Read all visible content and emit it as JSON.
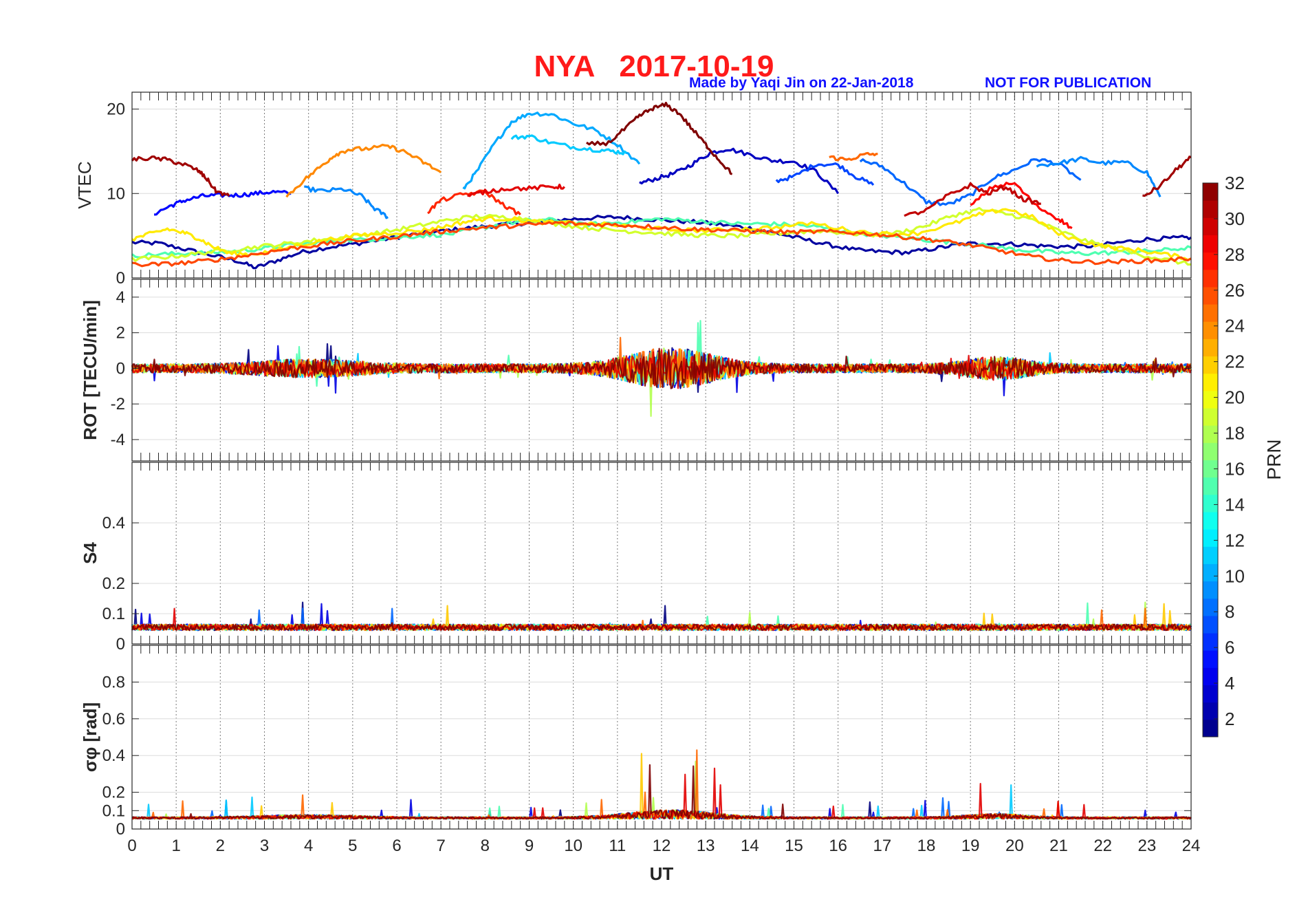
{
  "title": "NYA   2017-10-19",
  "credit": "Made by Yaqi Jin on 22-Jan-2018",
  "notice": "NOT FOR PUBLICATION",
  "chart_data": {
    "type": "line",
    "x_label": "UT",
    "x_range": [
      0,
      24
    ],
    "x_ticks": [
      "0",
      "1",
      "2",
      "3",
      "4",
      "5",
      "6",
      "7",
      "8",
      "9",
      "10",
      "11",
      "12",
      "13",
      "14",
      "15",
      "16",
      "17",
      "18",
      "19",
      "20",
      "21",
      "22",
      "23",
      "24"
    ],
    "colorbar": {
      "label": "PRN",
      "range": [
        1,
        32
      ],
      "ticks": [
        "2",
        "4",
        "6",
        "8",
        "10",
        "12",
        "14",
        "16",
        "18",
        "20",
        "22",
        "24",
        "26",
        "28",
        "30",
        "32"
      ],
      "colormap": "jet"
    },
    "panels": [
      {
        "name": "vtec",
        "ylabel": "VTEC",
        "ylim": [
          0,
          22
        ],
        "yticks": [
          "0",
          "10",
          "20"
        ],
        "ytick_values": [
          0,
          10,
          20
        ],
        "series": [
          {
            "prn": 31,
            "x": [
              0,
              0.4,
              0.8,
              1.2,
              1.5,
              1.7,
              1.9,
              2.2
            ],
            "y": [
              14,
              14.2,
              14,
              13.4,
              12.7,
              11.7,
              10.3,
              9.7
            ]
          },
          {
            "prn": 24,
            "x": [
              3.5,
              3.9,
              4.3,
              4.6,
              4.9,
              5.3,
              5.8,
              6.2,
              6.6,
              7.0
            ],
            "y": [
              9.6,
              11.6,
              13.3,
              14.6,
              15.2,
              15.3,
              15.6,
              14.9,
              13.7,
              12.5
            ]
          },
          {
            "prn": 9,
            "x": [
              3.9,
              4.3,
              4.8,
              5.2,
              5.5,
              5.8
            ],
            "y": [
              10.6,
              10.3,
              10.5,
              9.7,
              8.2,
              7.2
            ]
          },
          {
            "prn": 5,
            "x": [
              0.5,
              0.9,
              1.2,
              1.6,
              2,
              2.4,
              2.8,
              3.2,
              3.6
            ],
            "y": [
              7.6,
              8.6,
              9.2,
              9.7,
              9.8,
              9.8,
              10,
              10.2,
              10
            ]
          },
          {
            "prn": 10,
            "x": [
              7.5,
              7.8,
              8.2,
              8.6,
              9,
              9.5,
              10,
              10.5,
              11,
              11.5
            ],
            "y": [
              10.5,
              12.5,
              15.8,
              18.5,
              19.5,
              19.4,
              18.3,
              17.5,
              15.8,
              13.5
            ]
          },
          {
            "prn": 11,
            "x": [
              8.6,
              9,
              9.5,
              10,
              10.5,
              10.9,
              11.2
            ],
            "y": [
              16.6,
              16.8,
              16,
              15.5,
              15.2,
              15,
              14.8
            ]
          },
          {
            "prn": 32,
            "x": [
              10.3,
              10.8,
              11.2,
              11.5,
              11.8,
              12.1,
              12.4,
              12.7,
              13,
              13.3,
              13.6
            ],
            "y": [
              15.8,
              16,
              17.8,
              19.2,
              20.1,
              20.5,
              19.5,
              17.6,
              15.8,
              14,
              12.3
            ]
          },
          {
            "prn": 3,
            "x": [
              11.5,
              11.9,
              12.3,
              12.7,
              13.1,
              13.5,
              14,
              14.5,
              15,
              15.5,
              16
            ],
            "y": [
              11.2,
              11.8,
              12.4,
              13.5,
              14.8,
              15.3,
              14.6,
              13.9,
              13.8,
              12.6,
              10
            ]
          },
          {
            "prn": 7,
            "x": [
              14.6,
              15,
              15.5,
              16,
              16.4,
              16.8
            ],
            "y": [
              11.5,
              12,
              13.5,
              13.4,
              12,
              11
            ]
          },
          {
            "prn": 25,
            "x": [
              15.8,
              16.2,
              16.6,
              16.9
            ],
            "y": [
              14.3,
              14,
              14.6,
              14.7
            ]
          },
          {
            "prn": 8,
            "x": [
              16.5,
              17,
              17.5,
              18,
              18.5,
              19,
              19.5,
              20,
              20.5,
              21,
              21.5
            ],
            "y": [
              14,
              13.2,
              11.2,
              9,
              8.7,
              9.8,
              11.8,
              12.8,
              14.1,
              13.5,
              11.6
            ]
          },
          {
            "prn": 9,
            "x": [
              20.5,
              21,
              21.5,
              22,
              22.5,
              23,
              23.3
            ],
            "y": [
              13.3,
              13.6,
              14.1,
              13.6,
              13.7,
              12.5,
              9.6
            ]
          },
          {
            "prn": 31,
            "x": [
              22.9,
              23.3,
              23.7,
              24
            ],
            "y": [
              9.6,
              10.9,
              13,
              14.3
            ]
          },
          {
            "prn": 27,
            "x": [
              6.7,
              7.0,
              7.5,
              8,
              8.4,
              8.8
            ],
            "y": [
              7.8,
              9.2,
              9.9,
              10.2,
              8.7,
              7.5
            ]
          },
          {
            "prn": 29,
            "x": [
              7.6,
              8,
              8.5,
              9,
              9.5,
              9.8
            ],
            "y": [
              9.7,
              10.2,
              10.6,
              10.6,
              10.8,
              10.8
            ]
          },
          {
            "prn": 30,
            "x": [
              17.5,
              18,
              18.5,
              19,
              19.4,
              19.8,
              20.2,
              20.6
            ],
            "y": [
              7.3,
              8,
              9.8,
              11,
              10,
              10.8,
              9.3,
              8.8
            ]
          },
          {
            "prn": 28,
            "x": [
              19,
              19.5,
              20,
              20.5,
              21,
              21.3
            ],
            "y": [
              8.5,
              10.8,
              11.2,
              8.5,
              7,
              5.9
            ]
          },
          {
            "prn": 21,
            "x": [
              0,
              0.4,
              0.8,
              1.2,
              1.5,
              1.8,
              2.2,
              2.7,
              3.2,
              3.8,
              4.5,
              5.2,
              5.8,
              6.5,
              7,
              7.5,
              8,
              8.6,
              9.2,
              10,
              10.8,
              11.5,
              12.2,
              13,
              13.8,
              14.6,
              15.4,
              16.2,
              17,
              17.8,
              18.6,
              19.2,
              19.8,
              20.4,
              21,
              21.6,
              22.2,
              22.8,
              23.4,
              24
            ],
            "y": [
              4.6,
              5.2,
              5.8,
              5.3,
              4.7,
              3.8,
              2.9,
              2.8,
              3.2,
              3.9,
              4.6,
              5.1,
              5.3,
              5.6,
              6,
              6.6,
              7,
              7,
              6.6,
              6.5,
              6.3,
              6,
              5.7,
              5.6,
              5.8,
              6,
              6.5,
              5.7,
              5.2,
              5.3,
              6.4,
              7.5,
              8.2,
              7.2,
              5.2,
              4.2,
              3.6,
              3.3,
              2.8,
              2.3
            ]
          },
          {
            "prn": 15,
            "x": [
              0,
              0.6,
              1.2,
              1.8,
              2.4,
              3,
              3.6,
              4.2,
              4.8,
              5.4,
              6,
              6.6,
              7.2,
              7.8,
              8.4,
              9,
              9.6,
              10.2,
              10.8,
              11.4,
              12,
              12.6,
              13.2,
              13.8,
              14.4,
              15,
              15.6,
              16.2,
              16.8,
              17.4,
              18,
              18.6,
              19.2,
              19.8,
              20.4,
              21,
              21.6,
              22.2,
              22.8,
              23.4,
              24
            ],
            "y": [
              2.6,
              2.8,
              2.9,
              3,
              3.2,
              3.5,
              3.9,
              4.2,
              4.4,
              4.6,
              4.8,
              5,
              5.2,
              5.8,
              6.4,
              6.8,
              6.9,
              6.3,
              6.5,
              6.7,
              7,
              6.8,
              6.6,
              6.4,
              6.4,
              6.3,
              6,
              5.5,
              5.1,
              4.8,
              4.5,
              4.2,
              3.9,
              3.5,
              3.2,
              3,
              2.9,
              3,
              3.1,
              3.3,
              3.6
            ]
          },
          {
            "prn": 2,
            "x": [
              0,
              0.6,
              1.2,
              1.8,
              2.4,
              2.8,
              3.3,
              3.8,
              4.4,
              5,
              5.6,
              6.2,
              6.8,
              7.4,
              8,
              8.6,
              9.2,
              9.8,
              10.4,
              11,
              11.6,
              12.2,
              12.8,
              13.4,
              14,
              14.6,
              15.2,
              15.8,
              16.4,
              17,
              17.6,
              18.2,
              18.8,
              19.4,
              20,
              20.6,
              21.2,
              21.8,
              22.4,
              23,
              23.6,
              24
            ],
            "y": [
              4.2,
              4.1,
              3.4,
              2.7,
              2,
              1.2,
              2.1,
              3,
              3.6,
              4,
              4.5,
              5,
              5.4,
              5.8,
              6.1,
              6.4,
              6.6,
              6.9,
              7.1,
              7.2,
              7,
              6.8,
              6.6,
              6.3,
              5.9,
              5.3,
              4.6,
              3.9,
              3.3,
              3.1,
              3,
              3.5,
              4,
              4.1,
              4,
              3.8,
              3.7,
              3.8,
              4.2,
              4.6,
              4.7,
              4.8
            ]
          },
          {
            "prn": 26,
            "x": [
              0,
              0.6,
              1.2,
              1.8,
              2.4,
              3,
              3.6,
              4.2,
              4.8,
              5.4,
              6,
              6.6,
              7.2,
              7.8,
              8.4,
              9,
              9.6,
              10.2,
              10.8,
              11.4,
              12,
              12.6,
              13.2,
              13.8,
              14.4,
              15,
              15.6,
              16.2,
              16.8,
              17.4,
              18,
              18.6,
              19.2,
              19.8,
              20.4,
              21,
              21.6,
              22.2,
              22.8,
              23.4,
              24
            ],
            "y": [
              1.6,
              1.6,
              1.8,
              2.1,
              2.5,
              3,
              3.5,
              3.9,
              4.3,
              4.6,
              4.9,
              5.3,
              5.6,
              5.9,
              6.1,
              6.3,
              6.5,
              6.4,
              6.3,
              6.2,
              6,
              5.8,
              5.7,
              5.6,
              5.5,
              5.4,
              5.5,
              5.4,
              5.2,
              4.9,
              4.6,
              4.2,
              3.7,
              3.1,
              2.5,
              2.1,
              1.9,
              1.9,
              2,
              2.1,
              2.3
            ]
          },
          {
            "prn": 19,
            "x": [
              0,
              0.6,
              1.2,
              1.8,
              2.4,
              3,
              3.6,
              4.2,
              4.8,
              5.4,
              6,
              6.6,
              7.2,
              7.8,
              8.4,
              9,
              9.6,
              10.2,
              10.8,
              11.4,
              12,
              12.6,
              13.2,
              13.8,
              14.4,
              15,
              15.6,
              16.2,
              16.8,
              17.4,
              18,
              18.6,
              19.2,
              19.8,
              20.4,
              21,
              21.6,
              22.2,
              22.8,
              23.4,
              24
            ],
            "y": [
              2.2,
              2.4,
              2.7,
              3.1,
              3.4,
              3.8,
              4.1,
              4.5,
              4.8,
              5.2,
              5.7,
              6.3,
              6.9,
              7.3,
              7.2,
              7,
              6.4,
              6,
              5.7,
              5.5,
              5.3,
              5.1,
              5,
              5,
              5.2,
              5.4,
              5.6,
              5.3,
              5.1,
              5.4,
              6.2,
              7.4,
              8.1,
              7.6,
              6.9,
              5.6,
              4.4,
              3.6,
              2.8,
              2.2,
              1.6
            ]
          }
        ]
      },
      {
        "name": "rot",
        "ylabel": "ROT [TECU/min]",
        "ylim": [
          -5.2,
          5
        ],
        "yticks": [
          "-4",
          "-2",
          "0",
          "2",
          "4"
        ],
        "ytick_values": [
          -4,
          -2,
          0,
          2,
          4
        ]
      },
      {
        "name": "s4",
        "ylabel": "S4",
        "ylim": [
          0,
          0.6
        ],
        "yticks": [
          "0",
          "0.1",
          "0.2",
          "0.4"
        ],
        "ytick_values": [
          0,
          0.1,
          0.2,
          0.4
        ]
      },
      {
        "name": "sigma_phi",
        "ylabel": "σφ [rad]",
        "ylim": [
          0,
          1
        ],
        "yticks": [
          "0",
          "0.1",
          "0.2",
          "0.4",
          "0.6",
          "0.8"
        ],
        "ytick_values": [
          0,
          0.1,
          0.2,
          0.4,
          0.6,
          0.8
        ]
      }
    ]
  }
}
